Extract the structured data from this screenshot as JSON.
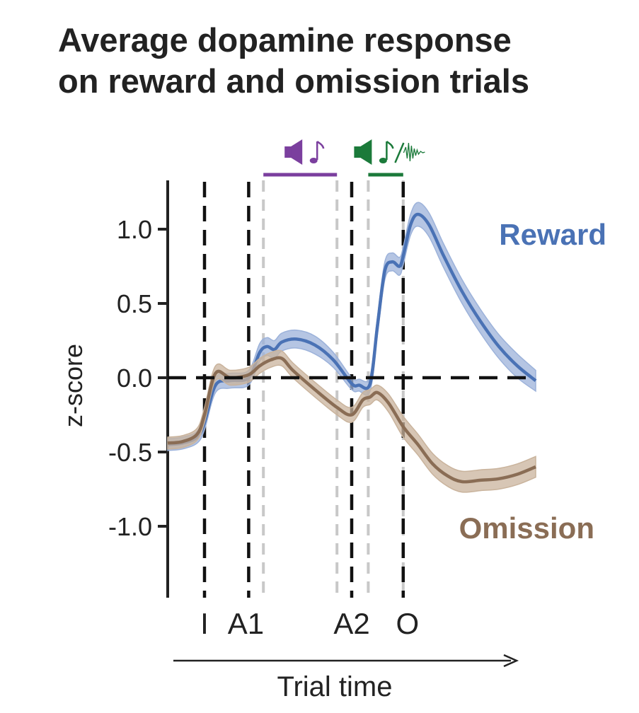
{
  "title_lines": [
    "Average dopamine response",
    "on reward and omission trials"
  ],
  "chart_data": {
    "type": "line",
    "title": "Average dopamine response on reward and omission trials",
    "xlabel": "Trial time",
    "ylabel": "z-score",
    "x_range": [
      0,
      100
    ],
    "ylim": [
      -1.45,
      1.3
    ],
    "yticks": [
      1.0,
      0.5,
      0.0,
      -0.5,
      -1.0
    ],
    "ytick_labels": [
      "1.0",
      "0.5",
      "0.0",
      "-0.5",
      "-1.0"
    ],
    "grid": false,
    "zero_line": true,
    "events": [
      {
        "label": "I",
        "x": 10
      },
      {
        "label": "A1",
        "x": 22
      },
      {
        "label": "A2",
        "x": 50
      },
      {
        "label": "O",
        "x": 64
      }
    ],
    "cue_markers": [
      {
        "start": 26,
        "end": 46,
        "color": "#7b3f9e",
        "icon": "speaker-note-icon"
      },
      {
        "start": 54.5,
        "end": 64,
        "color": "#1b7a3a",
        "icon": "speaker-note-noise-icon"
      }
    ],
    "series": [
      {
        "name": "Reward",
        "color": "#4a72b5",
        "band_color": "#9cb2da",
        "x": [
          0,
          4,
          8,
          10,
          13,
          17,
          22,
          25,
          27,
          29,
          31,
          35,
          40,
          45,
          50,
          52,
          55,
          57,
          59,
          61,
          63,
          64,
          66,
          68,
          71,
          75,
          80,
          85,
          90,
          95,
          100
        ],
        "y": [
          -0.45,
          -0.44,
          -0.4,
          -0.3,
          -0.05,
          -0.02,
          0.0,
          0.17,
          0.21,
          0.19,
          0.24,
          0.26,
          0.22,
          0.12,
          -0.04,
          -0.05,
          -0.04,
          0.35,
          0.72,
          0.78,
          0.75,
          0.82,
          1.03,
          1.1,
          1.03,
          0.82,
          0.58,
          0.38,
          0.21,
          0.08,
          -0.02
        ],
        "error": [
          0.04,
          0.04,
          0.04,
          0.05,
          0.05,
          0.05,
          0.05,
          0.06,
          0.06,
          0.06,
          0.06,
          0.06,
          0.06,
          0.05,
          0.04,
          0.04,
          0.05,
          0.06,
          0.06,
          0.06,
          0.06,
          0.06,
          0.07,
          0.08,
          0.08,
          0.08,
          0.08,
          0.08,
          0.08,
          0.08,
          0.07
        ]
      },
      {
        "name": "Omission",
        "color": "#8a6d55",
        "band_color": "#c9b39c",
        "x": [
          0,
          4,
          8,
          10,
          13,
          17,
          22,
          25,
          28,
          31,
          34,
          40,
          46,
          50,
          53,
          55,
          57,
          60,
          64,
          68,
          72,
          76,
          80,
          85,
          90,
          95,
          100
        ],
        "y": [
          -0.44,
          -0.43,
          -0.38,
          -0.25,
          0.03,
          0.0,
          0.02,
          0.08,
          0.12,
          0.13,
          0.05,
          -0.08,
          -0.2,
          -0.25,
          -0.15,
          -0.13,
          -0.1,
          -0.17,
          -0.33,
          -0.45,
          -0.58,
          -0.66,
          -0.7,
          -0.69,
          -0.68,
          -0.65,
          -0.6
        ],
        "error": [
          0.04,
          0.04,
          0.04,
          0.05,
          0.05,
          0.05,
          0.05,
          0.05,
          0.05,
          0.05,
          0.05,
          0.05,
          0.05,
          0.05,
          0.05,
          0.05,
          0.05,
          0.06,
          0.07,
          0.07,
          0.07,
          0.07,
          0.07,
          0.07,
          0.07,
          0.07,
          0.07
        ]
      }
    ]
  }
}
